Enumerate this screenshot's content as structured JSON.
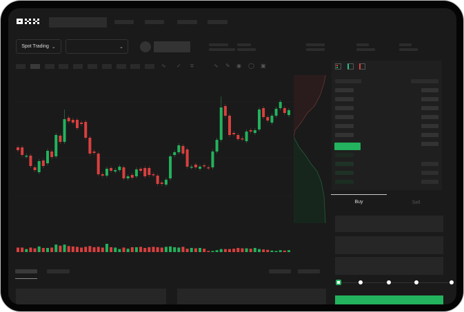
{
  "brand": {
    "logo": "OKX"
  },
  "toolbar": {
    "market_type": "Spot Trading",
    "pair_placeholder": ""
  },
  "colors": {
    "up": "#23b25d",
    "down": "#d9403f",
    "background": "#1a1a1a",
    "frame": "#050505"
  },
  "icons": [
    "chevron-down-icon",
    "indicator-icon",
    "line-tool-icon",
    "draw-icon",
    "camera-icon",
    "settings-icon",
    "fullscreen-icon",
    "orderbook-both-icon",
    "orderbook-bids-icon",
    "orderbook-asks-icon"
  ],
  "order_form": {
    "tabs": [
      {
        "label": "Buy",
        "active": true
      },
      {
        "label": "Sell",
        "active": false
      }
    ],
    "slider_percent": 0
  },
  "chart_data": {
    "type": "candlestick",
    "candles": [
      {
        "o": 197,
        "c": 193
      },
      {
        "o": 197,
        "c": 186
      },
      {
        "o": 184,
        "c": 185
      },
      {
        "o": 185,
        "c": 170
      },
      {
        "o": 168,
        "c": 164
      },
      {
        "o": 161,
        "c": 177
      },
      {
        "o": 178,
        "c": 170
      },
      {
        "o": 174,
        "c": 192
      },
      {
        "o": 191,
        "c": 183
      },
      {
        "o": 184,
        "c": 215
      },
      {
        "o": 214,
        "c": 205
      },
      {
        "o": 205,
        "c": 238,
        "h": 252
      },
      {
        "o": 240,
        "c": 235
      },
      {
        "o": 237,
        "c": 233
      },
      {
        "o": 237,
        "c": 225
      },
      {
        "o": 233,
        "c": 231
      },
      {
        "o": 234,
        "c": 211
      },
      {
        "o": 211,
        "c": 188
      },
      {
        "o": 191,
        "c": 189
      },
      {
        "o": 188,
        "c": 158
      },
      {
        "o": 158,
        "c": 156
      },
      {
        "o": 156,
        "c": 166
      },
      {
        "o": 167,
        "c": 163
      },
      {
        "o": 162,
        "c": 164
      },
      {
        "o": 164,
        "c": 169
      },
      {
        "o": 168,
        "c": 152
      },
      {
        "o": 152,
        "c": 155
      },
      {
        "o": 157,
        "c": 153
      },
      {
        "o": 155,
        "c": 165
      },
      {
        "o": 166,
        "c": 163
      },
      {
        "o": 167,
        "c": 155
      },
      {
        "o": 167,
        "c": 157
      },
      {
        "o": 158,
        "c": 157
      },
      {
        "o": 156,
        "c": 144
      },
      {
        "o": 146,
        "c": 144
      },
      {
        "o": 143,
        "c": 150
      },
      {
        "o": 152,
        "c": 184
      },
      {
        "o": 186,
        "c": 190
      },
      {
        "o": 190,
        "c": 200
      },
      {
        "o": 199,
        "c": 188
      },
      {
        "o": 194,
        "c": 169
      },
      {
        "o": 168,
        "c": 169
      },
      {
        "o": 172,
        "c": 168
      },
      {
        "o": 166,
        "c": 169
      },
      {
        "o": 171,
        "c": 170
      },
      {
        "o": 168,
        "c": 167
      },
      {
        "o": 168,
        "c": 191
      },
      {
        "o": 191,
        "c": 208
      },
      {
        "o": 208,
        "c": 255,
        "h": 271
      },
      {
        "o": 257,
        "c": 243
      },
      {
        "o": 243,
        "c": 215
      },
      {
        "o": 218,
        "c": 216
      },
      {
        "o": 215,
        "c": 209
      },
      {
        "o": 210,
        "c": 209
      },
      {
        "o": 206,
        "c": 220
      },
      {
        "o": 222,
        "c": 220
      },
      {
        "o": 218,
        "c": 222
      },
      {
        "o": 223,
        "c": 252
      },
      {
        "o": 254,
        "c": 241
      },
      {
        "o": 241,
        "c": 236
      },
      {
        "o": 233,
        "c": 243
      },
      {
        "o": 243,
        "c": 253
      },
      {
        "o": 254,
        "c": 263
      },
      {
        "o": 254,
        "c": 247
      },
      {
        "o": 244,
        "c": 251
      }
    ],
    "volume": [
      12,
      12,
      8,
      12,
      10,
      15,
      11,
      11,
      12,
      20,
      17,
      20,
      16,
      15,
      14,
      12,
      14,
      16,
      13,
      14,
      12,
      22,
      13,
      12,
      8,
      12,
      9,
      13,
      13,
      14,
      11,
      13,
      14,
      13,
      12,
      14,
      15,
      13,
      12,
      14,
      9,
      11,
      10,
      11,
      9,
      3,
      3,
      5,
      8,
      8,
      8,
      9,
      11,
      10,
      10,
      9,
      11,
      8,
      7,
      6,
      4,
      3,
      5,
      4,
      5
    ],
    "grid": true
  }
}
